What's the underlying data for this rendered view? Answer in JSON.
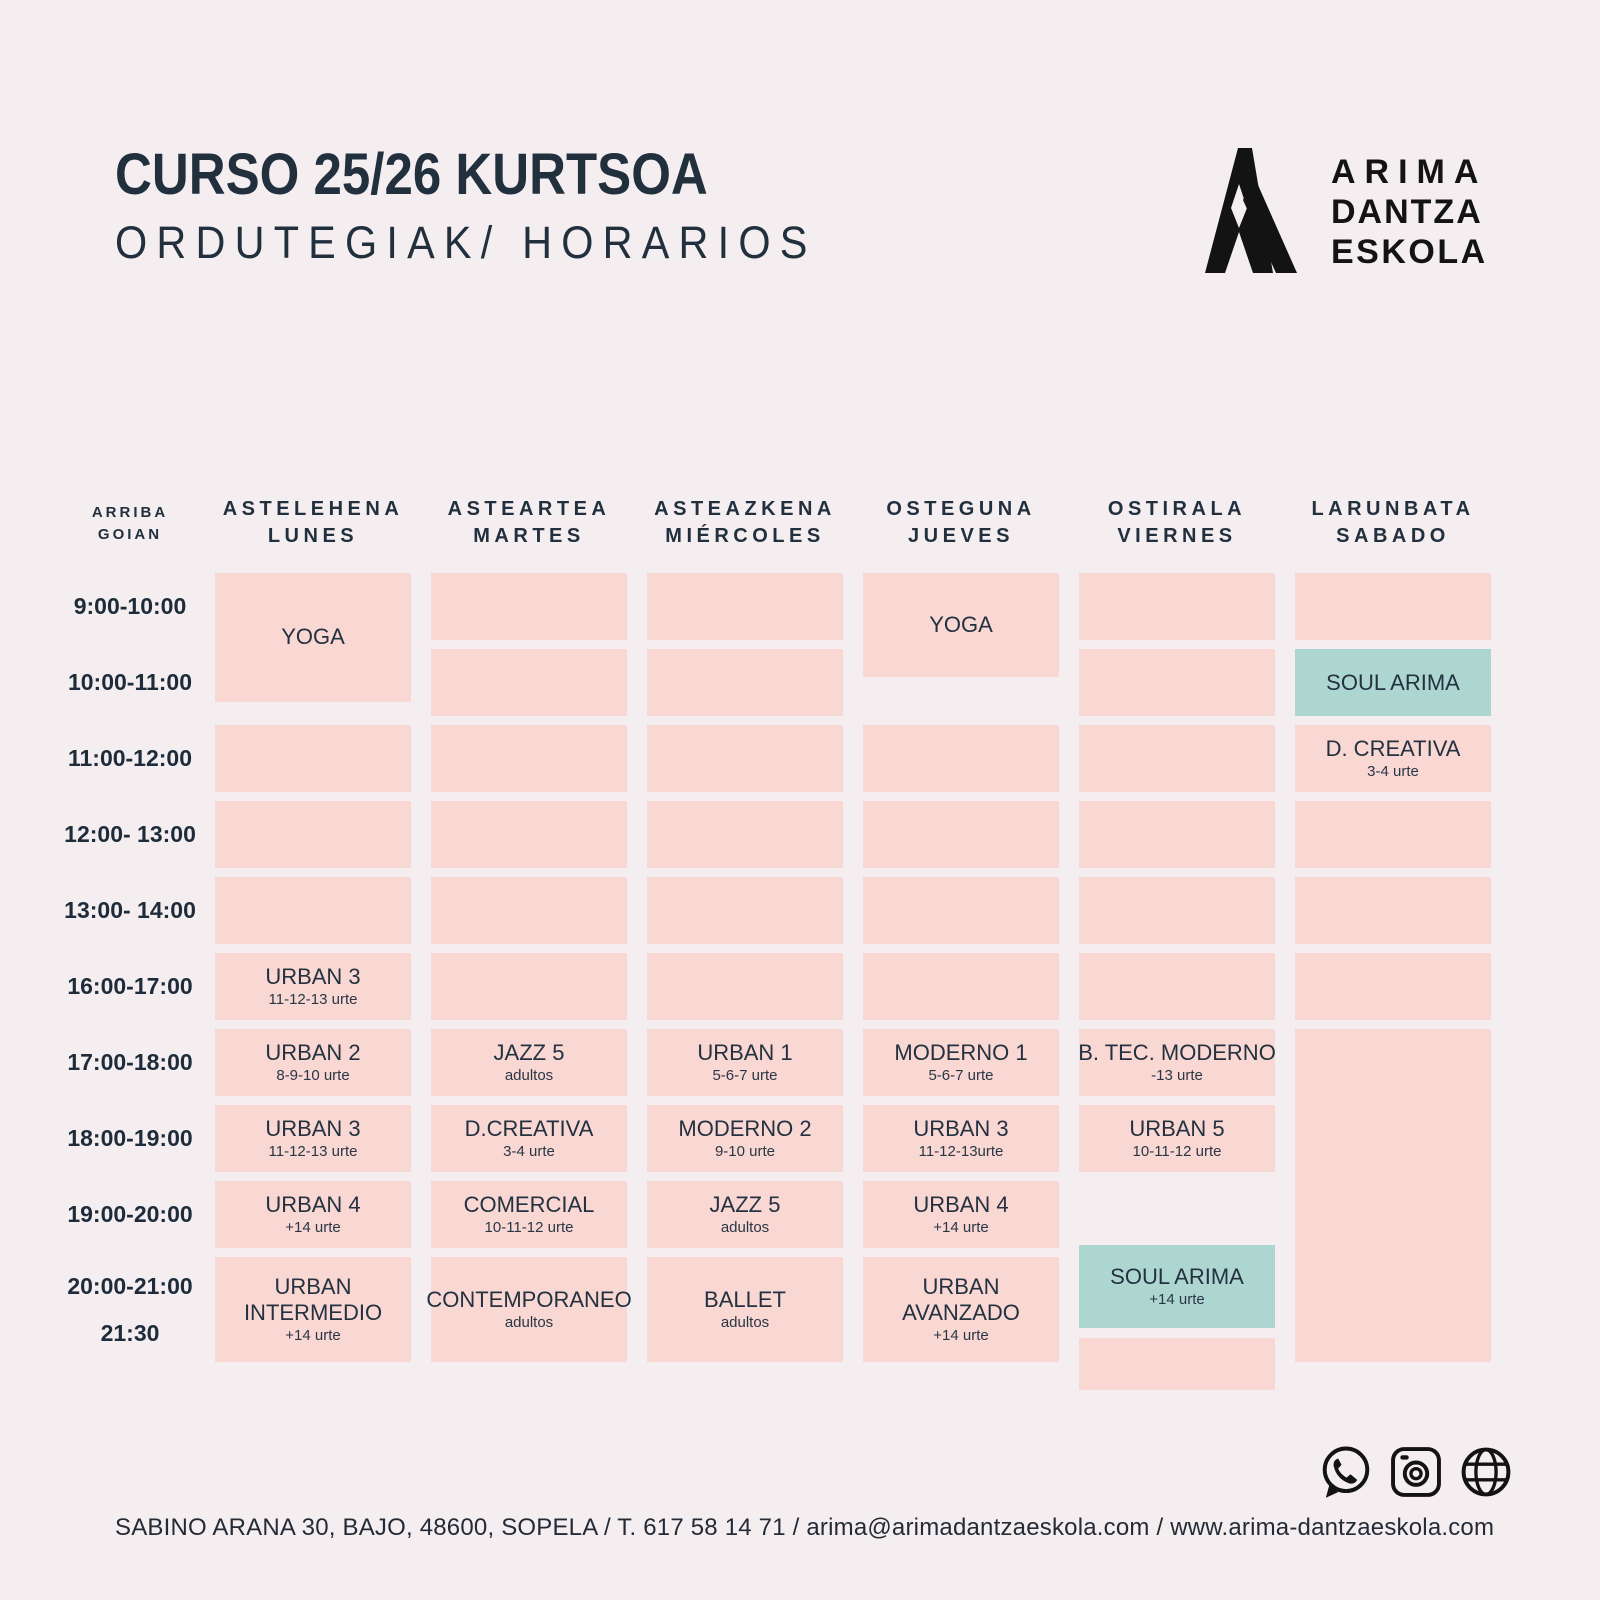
{
  "title": {
    "line1": "CURSO 25/26 KURTSOA",
    "line2": "ORDUTEGIAK/ HORARIOS"
  },
  "logo": {
    "line1": "ARIMA",
    "line2": "DANTZA",
    "line3": "ESKOLA"
  },
  "colors": {
    "background": "#f4eef1",
    "cell_pink": "#f9d7d2",
    "cell_teal": "#aed6d1",
    "text_navy": "#22303e",
    "logo_black": "#131313"
  },
  "table": {
    "corner": {
      "line1": "ARRIBA",
      "line2": "GOIAN"
    },
    "days": [
      {
        "id": "monday",
        "lines": [
          "ASTELEHENA",
          "LUNES"
        ]
      },
      {
        "id": "tuesday",
        "lines": [
          "ASTEARTEA",
          "MARTES"
        ]
      },
      {
        "id": "wednesday",
        "lines": [
          "ASTEAZKENA",
          "MIÉRCOLES"
        ]
      },
      {
        "id": "thursday",
        "lines": [
          "OSTEGUNA",
          "JUEVES"
        ]
      },
      {
        "id": "friday",
        "lines": [
          "OSTIRALA",
          "VIERNES"
        ]
      },
      {
        "id": "saturday",
        "lines": [
          "LARUNBATA",
          "SABADO"
        ]
      }
    ],
    "times": [
      [
        "9:00-10:00"
      ],
      [
        "10:00-11:00"
      ],
      [
        "11:00-12:00"
      ],
      [
        "12:00- 13:00"
      ],
      [
        "13:00- 14:00"
      ],
      [
        "16:00-17:00"
      ],
      [
        "17:00-18:00"
      ],
      [
        "18:00-19:00"
      ],
      [
        "19:00-20:00"
      ],
      [
        "20:00-21:00",
        "21:30"
      ]
    ],
    "cells": [
      {
        "day": 1,
        "row": 1,
        "span": 2,
        "title": "YOGA",
        "mods": "yoga-a"
      },
      {
        "day": 1,
        "row": 3
      },
      {
        "day": 1,
        "row": 4
      },
      {
        "day": 1,
        "row": 5
      },
      {
        "day": 1,
        "row": 6,
        "title": "URBAN 3",
        "sub": "11-12-13 urte"
      },
      {
        "day": 1,
        "row": 7,
        "title": "URBAN 2",
        "sub": "8-9-10 urte"
      },
      {
        "day": 1,
        "row": 8,
        "title": "URBAN 3",
        "sub": "11-12-13 urte"
      },
      {
        "day": 1,
        "row": 9,
        "title": "URBAN 4",
        "sub": "+14 urte"
      },
      {
        "day": 1,
        "row": 10,
        "title": "URBAN INTERMEDIO",
        "sub": "+14 urte",
        "wrap": true
      },
      {
        "day": 2,
        "row": 1
      },
      {
        "day": 2,
        "row": 2
      },
      {
        "day": 2,
        "row": 3
      },
      {
        "day": 2,
        "row": 4
      },
      {
        "day": 2,
        "row": 5
      },
      {
        "day": 2,
        "row": 6
      },
      {
        "day": 2,
        "row": 7,
        "title": "JAZZ 5",
        "sub": "adultos"
      },
      {
        "day": 2,
        "row": 8,
        "title": "D.CREATIVA",
        "sub": "3-4 urte"
      },
      {
        "day": 2,
        "row": 9,
        "title": "COMERCIAL",
        "sub": "10-11-12 urte"
      },
      {
        "day": 2,
        "row": 10,
        "title": "CONTEMPORANEO",
        "sub": "adultos"
      },
      {
        "day": 3,
        "row": 1
      },
      {
        "day": 3,
        "row": 2
      },
      {
        "day": 3,
        "row": 3
      },
      {
        "day": 3,
        "row": 4
      },
      {
        "day": 3,
        "row": 5
      },
      {
        "day": 3,
        "row": 6
      },
      {
        "day": 3,
        "row": 7,
        "title": "URBAN 1",
        "sub": "5-6-7 urte"
      },
      {
        "day": 3,
        "row": 8,
        "title": "MODERNO 2",
        "sub": "9-10 urte"
      },
      {
        "day": 3,
        "row": 9,
        "title": "JAZZ 5",
        "sub": "adultos"
      },
      {
        "day": 3,
        "row": 10,
        "title": "BALLET",
        "sub": "adultos"
      },
      {
        "day": 4,
        "row": 1,
        "span": 2,
        "title": "YOGA",
        "mods": "yoga-b"
      },
      {
        "day": 4,
        "row": 3
      },
      {
        "day": 4,
        "row": 4
      },
      {
        "day": 4,
        "row": 5
      },
      {
        "day": 4,
        "row": 6
      },
      {
        "day": 4,
        "row": 7,
        "title": "MODERNO 1",
        "sub": "5-6-7 urte"
      },
      {
        "day": 4,
        "row": 8,
        "title": "URBAN 3",
        "sub": "11-12-13urte"
      },
      {
        "day": 4,
        "row": 9,
        "title": "URBAN 4",
        "sub": "+14 urte"
      },
      {
        "day": 4,
        "row": 10,
        "title": "URBAN AVANZADO",
        "sub": "+14 urte",
        "wrap": true
      },
      {
        "day": 5,
        "row": 1
      },
      {
        "day": 5,
        "row": 2
      },
      {
        "day": 5,
        "row": 3
      },
      {
        "day": 5,
        "row": 4
      },
      {
        "day": 5,
        "row": 5
      },
      {
        "day": 5,
        "row": 6
      },
      {
        "day": 5,
        "row": 7,
        "title": "B. TEC. MODERNO",
        "sub": "-13 urte"
      },
      {
        "day": 5,
        "row": 8,
        "title": "URBAN 5",
        "sub": "10-11-12 urte"
      },
      {
        "day": 5,
        "row": 9,
        "title": "SOUL ARIMA",
        "sub": "+14 urte",
        "color": "teal",
        "mods": "shift-down"
      },
      {
        "day": 5,
        "row": 10,
        "mods": "shift-down-sm"
      },
      {
        "day": 6,
        "row": 1
      },
      {
        "day": 6,
        "row": 2,
        "title": "SOUL ARIMA",
        "color": "teal"
      },
      {
        "day": 6,
        "row": 3,
        "title": "D. CREATIVA",
        "sub": "3-4 urte"
      },
      {
        "day": 6,
        "row": 4
      },
      {
        "day": 6,
        "row": 5
      },
      {
        "day": 6,
        "row": 6
      },
      {
        "day": 6,
        "row": 7,
        "span": 4
      }
    ]
  },
  "footer": {
    "contact": "SABINO ARANA 30, BAJO, 48600, SOPELA / T. 617 58 14 71 / arima@arimadantzaeskola.com / www.arima-dantzaeskola.com",
    "icons": [
      "whatsapp-icon",
      "instagram-icon",
      "globe-icon"
    ]
  }
}
